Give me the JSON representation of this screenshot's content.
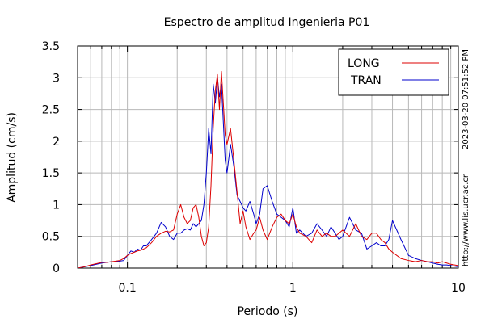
{
  "chart_data": {
    "type": "line",
    "title": "Espectro de amplitud Ingenieria P01",
    "xlabel": "Periodo (s)",
    "ylabel": "Amplitud (cm/s)",
    "xscale": "log",
    "xlim": [
      0.05,
      10
    ],
    "ylim": [
      0,
      3.5
    ],
    "yticks": [
      "0",
      "0.5",
      "1",
      "1.5",
      "2",
      "2.5",
      "3",
      "3.5"
    ],
    "xticks": [
      "0.1",
      "1",
      "10"
    ],
    "grid": true,
    "legend_position": "top-right",
    "side_text_timestamp": "2023-03-20 07:51:52 PM",
    "side_text_url": "http://www.lis.ucr.ac.cr",
    "colors": {
      "LONG": "#dd0000",
      "TRAN": "#0000cc"
    },
    "series": [
      {
        "name": "LONG",
        "x": [
          0.05,
          0.055,
          0.06,
          0.065,
          0.07,
          0.075,
          0.08,
          0.085,
          0.09,
          0.095,
          0.1,
          0.105,
          0.11,
          0.115,
          0.12,
          0.125,
          0.13,
          0.14,
          0.15,
          0.16,
          0.17,
          0.18,
          0.19,
          0.2,
          0.21,
          0.22,
          0.23,
          0.24,
          0.25,
          0.26,
          0.27,
          0.28,
          0.29,
          0.3,
          0.31,
          0.32,
          0.33,
          0.34,
          0.35,
          0.36,
          0.37,
          0.38,
          0.39,
          0.4,
          0.42,
          0.44,
          0.46,
          0.48,
          0.5,
          0.52,
          0.55,
          0.58,
          0.6,
          0.63,
          0.66,
          0.7,
          0.75,
          0.8,
          0.85,
          0.9,
          0.95,
          1.0,
          1.05,
          1.1,
          1.2,
          1.3,
          1.4,
          1.5,
          1.6,
          1.7,
          1.8,
          1.9,
          2.0,
          2.2,
          2.4,
          2.6,
          2.8,
          3.0,
          3.2,
          3.4,
          3.6,
          3.8,
          4.0,
          4.5,
          5.0,
          5.5,
          6.0,
          6.5,
          7.0,
          7.5,
          8.0,
          8.5,
          9.0,
          9.5,
          10.0
        ],
        "y": [
          0.0,
          0.02,
          0.05,
          0.07,
          0.09,
          0.09,
          0.1,
          0.11,
          0.12,
          0.15,
          0.2,
          0.23,
          0.25,
          0.27,
          0.28,
          0.3,
          0.32,
          0.4,
          0.5,
          0.55,
          0.58,
          0.57,
          0.6,
          0.85,
          1.0,
          0.8,
          0.7,
          0.75,
          0.95,
          1.0,
          0.8,
          0.5,
          0.35,
          0.4,
          0.65,
          1.3,
          2.2,
          2.8,
          3.05,
          2.5,
          3.1,
          2.6,
          2.1,
          1.95,
          2.2,
          1.7,
          1.2,
          0.7,
          0.9,
          0.65,
          0.45,
          0.55,
          0.6,
          0.8,
          0.6,
          0.45,
          0.65,
          0.8,
          0.85,
          0.75,
          0.7,
          0.85,
          0.65,
          0.55,
          0.5,
          0.4,
          0.6,
          0.5,
          0.55,
          0.5,
          0.5,
          0.55,
          0.6,
          0.5,
          0.7,
          0.5,
          0.45,
          0.55,
          0.55,
          0.45,
          0.4,
          0.3,
          0.25,
          0.15,
          0.12,
          0.1,
          0.12,
          0.1,
          0.1,
          0.08,
          0.1,
          0.08,
          0.06,
          0.05,
          0.04
        ]
      },
      {
        "name": "TRAN",
        "x": [
          0.05,
          0.055,
          0.06,
          0.065,
          0.07,
          0.075,
          0.08,
          0.085,
          0.09,
          0.095,
          0.1,
          0.105,
          0.11,
          0.115,
          0.12,
          0.125,
          0.13,
          0.14,
          0.15,
          0.16,
          0.17,
          0.18,
          0.19,
          0.2,
          0.21,
          0.22,
          0.23,
          0.24,
          0.25,
          0.26,
          0.27,
          0.28,
          0.29,
          0.3,
          0.31,
          0.32,
          0.33,
          0.34,
          0.35,
          0.36,
          0.37,
          0.38,
          0.39,
          0.4,
          0.42,
          0.44,
          0.46,
          0.48,
          0.5,
          0.52,
          0.55,
          0.58,
          0.6,
          0.63,
          0.66,
          0.7,
          0.75,
          0.8,
          0.85,
          0.9,
          0.95,
          1.0,
          1.05,
          1.1,
          1.2,
          1.3,
          1.4,
          1.5,
          1.6,
          1.7,
          1.8,
          1.9,
          2.0,
          2.2,
          2.4,
          2.6,
          2.8,
          3.0,
          3.2,
          3.4,
          3.6,
          3.8,
          4.0,
          4.5,
          5.0,
          5.5,
          6.0,
          6.5,
          7.0,
          7.5,
          8.0,
          8.5,
          9.0,
          9.5,
          10.0
        ],
        "y": [
          0.0,
          0.02,
          0.04,
          0.06,
          0.08,
          0.09,
          0.1,
          0.1,
          0.11,
          0.12,
          0.2,
          0.27,
          0.25,
          0.3,
          0.28,
          0.35,
          0.35,
          0.45,
          0.55,
          0.72,
          0.65,
          0.5,
          0.45,
          0.55,
          0.55,
          0.6,
          0.62,
          0.6,
          0.7,
          0.65,
          0.7,
          0.75,
          1.0,
          1.5,
          2.2,
          1.8,
          2.9,
          2.6,
          3.0,
          2.7,
          2.9,
          2.3,
          1.7,
          1.5,
          1.95,
          1.6,
          1.15,
          1.05,
          0.95,
          0.9,
          1.05,
          0.85,
          0.7,
          0.85,
          1.25,
          1.3,
          1.05,
          0.85,
          0.8,
          0.75,
          0.65,
          0.95,
          0.55,
          0.6,
          0.5,
          0.55,
          0.7,
          0.6,
          0.5,
          0.65,
          0.55,
          0.45,
          0.5,
          0.8,
          0.6,
          0.55,
          0.3,
          0.35,
          0.4,
          0.35,
          0.35,
          0.45,
          0.75,
          0.45,
          0.2,
          0.15,
          0.12,
          0.1,
          0.08,
          0.06,
          0.05,
          0.05,
          0.04,
          0.03,
          0.02
        ]
      }
    ]
  }
}
